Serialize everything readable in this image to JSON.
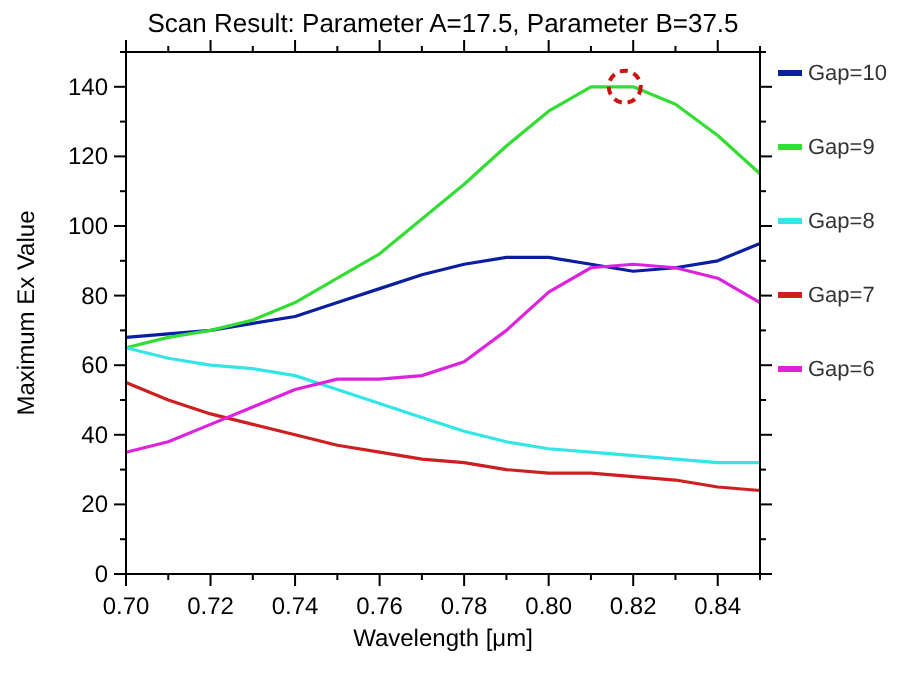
{
  "chart_data": {
    "type": "line",
    "title": "Scan Result: Parameter A=17.5, Parameter B=37.5",
    "xlabel": "Wavelength [μm]",
    "ylabel": "Maximum Ex Value",
    "x": [
      0.7,
      0.71,
      0.72,
      0.73,
      0.74,
      0.75,
      0.76,
      0.77,
      0.78,
      0.79,
      0.8,
      0.81,
      0.82,
      0.83,
      0.84,
      0.85
    ],
    "xlim": [
      0.7,
      0.85
    ],
    "xticks": [
      {
        "value": 0.7,
        "label": "0.70"
      },
      {
        "value": 0.71,
        "label": null
      },
      {
        "value": 0.72,
        "label": "0.72"
      },
      {
        "value": 0.73,
        "label": null
      },
      {
        "value": 0.74,
        "label": "0.74"
      },
      {
        "value": 0.75,
        "label": null
      },
      {
        "value": 0.76,
        "label": "0.76"
      },
      {
        "value": 0.77,
        "label": null
      },
      {
        "value": 0.78,
        "label": "0.78"
      },
      {
        "value": 0.79,
        "label": null
      },
      {
        "value": 0.8,
        "label": "0.80"
      },
      {
        "value": 0.81,
        "label": null
      },
      {
        "value": 0.82,
        "label": "0.82"
      },
      {
        "value": 0.83,
        "label": null
      },
      {
        "value": 0.84,
        "label": "0.84"
      },
      {
        "value": 0.85,
        "label": null
      }
    ],
    "ylim": [
      0,
      150
    ],
    "yticks": [
      0,
      {
        "value": 10,
        "label": null
      },
      20,
      {
        "value": 30,
        "label": null
      },
      40,
      {
        "value": 50,
        "label": null
      },
      60,
      {
        "value": 70,
        "label": null
      },
      80,
      {
        "value": 90,
        "label": null
      },
      100,
      {
        "value": 110,
        "label": null
      },
      120,
      {
        "value": 130,
        "label": null
      },
      140,
      {
        "value": 150,
        "label": null
      }
    ],
    "grid": false,
    "legend": "right",
    "marker": "none",
    "line_style": "solid",
    "series": [
      {
        "name": "Gap=10",
        "color": "#0a1ea0",
        "values": [
          68,
          69,
          70,
          72,
          74,
          78,
          82,
          86,
          89,
          91,
          91,
          89,
          87,
          88,
          90,
          95
        ]
      },
      {
        "name": "Gap=9",
        "color": "#33dd33",
        "values": [
          65,
          68,
          70,
          73,
          78,
          85,
          92,
          102,
          112,
          123,
          133,
          140,
          140,
          135,
          126,
          115
        ]
      },
      {
        "name": "Gap=8",
        "color": "#33e5e5",
        "values": [
          65,
          62,
          60,
          59,
          57,
          53,
          49,
          45,
          41,
          38,
          36,
          35,
          34,
          33,
          32,
          32
        ]
      },
      {
        "name": "Gap=7",
        "color": "#cc2020",
        "values": [
          55,
          50,
          46,
          43,
          40,
          37,
          35,
          33,
          32,
          30,
          29,
          29,
          28,
          27,
          25,
          24
        ]
      },
      {
        "name": "Gap=6",
        "color": "#dd22dd",
        "values": [
          35,
          38,
          43,
          48,
          53,
          56,
          56,
          57,
          61,
          70,
          81,
          88,
          89,
          88,
          85,
          78
        ]
      }
    ]
  }
}
